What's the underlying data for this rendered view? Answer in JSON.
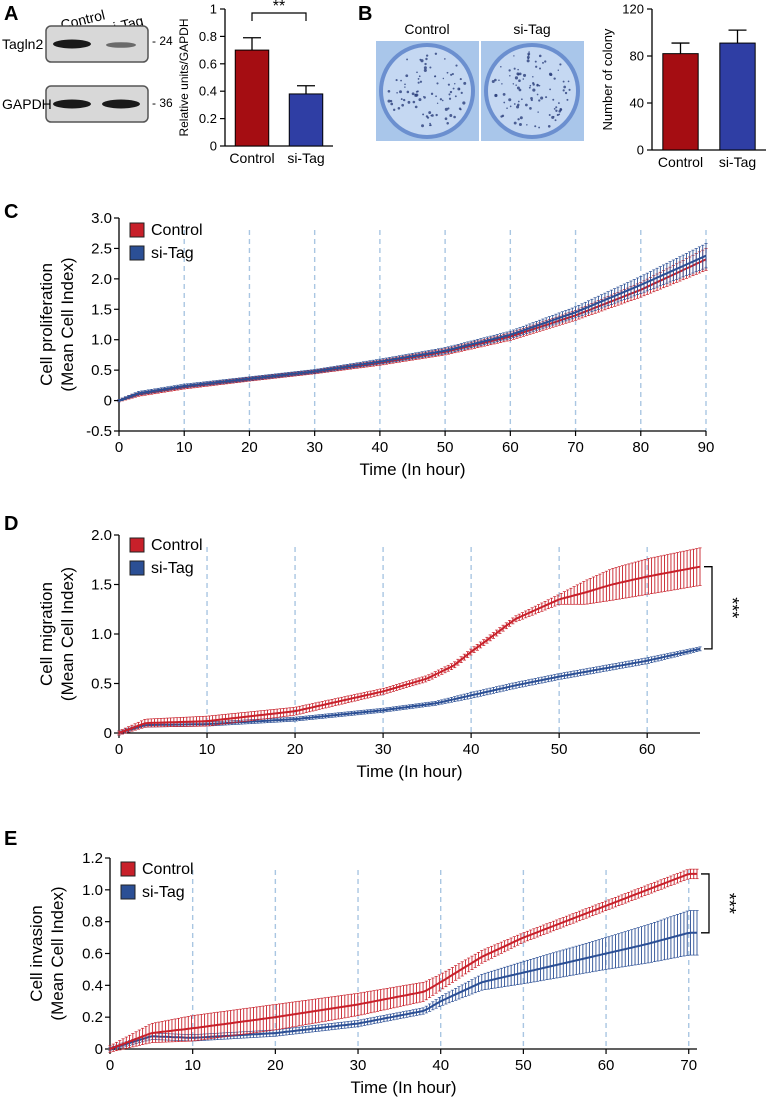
{
  "colors": {
    "control": "#a50d12",
    "sitag": "#2f3ea4",
    "control_line": "#c8202a",
    "sitag_line": "#2b4f95",
    "grid": "#8db3d9"
  },
  "panels": {
    "a": "A",
    "b": "B",
    "c": "C",
    "d": "D",
    "e": "E"
  },
  "blot": {
    "header_control": "Control",
    "header_sitag": "si-Tag",
    "row1_label": "Tagln2",
    "row2_label": "GAPDH",
    "marker1": "- 24",
    "marker2": "- 36"
  },
  "plates": {
    "label_control": "Control",
    "label_sitag": "si-Tag"
  },
  "chart_data": [
    {
      "id": "a",
      "type": "bar",
      "ylabel": "Relative units/GAPDH",
      "categories": [
        "Control",
        "si-Tag"
      ],
      "values": [
        0.7,
        0.38
      ],
      "errors": [
        0.09,
        0.06
      ],
      "ylim": [
        0,
        1.0
      ],
      "yticks": [
        "0",
        "0.2",
        "0.4",
        "0.6",
        "0.8",
        "1"
      ],
      "significance": "**"
    },
    {
      "id": "b",
      "type": "bar",
      "ylabel": "Number of colony",
      "categories": [
        "Control",
        "si-Tag"
      ],
      "values": [
        82,
        91
      ],
      "errors": [
        9,
        11
      ],
      "ylim": [
        0,
        120
      ],
      "yticks": [
        "0",
        "40",
        "80",
        "120"
      ]
    },
    {
      "id": "c",
      "type": "line",
      "ylabel_line1": "Cell proliferation",
      "ylabel_line2": "(Mean Cell Index)",
      "xlabel": "Time (In hour)",
      "xlim": [
        0,
        90
      ],
      "ylim": [
        -0.5,
        3.0
      ],
      "xticks": [
        "0",
        "10",
        "20",
        "30",
        "40",
        "50",
        "60",
        "70",
        "80",
        "90"
      ],
      "yticks": [
        "-0.5",
        "0",
        "0.5",
        "1.0",
        "1.5",
        "2.0",
        "2.5",
        "3.0"
      ],
      "legend": [
        "Control",
        "si-Tag"
      ],
      "series": [
        {
          "name": "Control",
          "x": [
            0,
            3,
            10,
            20,
            30,
            40,
            50,
            60,
            70,
            80,
            90
          ],
          "y": [
            0,
            0.1,
            0.22,
            0.35,
            0.47,
            0.62,
            0.8,
            1.05,
            1.4,
            1.82,
            2.32
          ],
          "err": [
            0.02,
            0.03,
            0.03,
            0.03,
            0.03,
            0.04,
            0.05,
            0.06,
            0.08,
            0.12,
            0.18
          ]
        },
        {
          "name": "si-Tag",
          "x": [
            0,
            3,
            10,
            20,
            30,
            40,
            50,
            60,
            70,
            80,
            90
          ],
          "y": [
            0,
            0.12,
            0.24,
            0.36,
            0.48,
            0.64,
            0.82,
            1.08,
            1.45,
            1.9,
            2.38
          ],
          "err": [
            0.02,
            0.03,
            0.03,
            0.03,
            0.03,
            0.04,
            0.05,
            0.06,
            0.09,
            0.14,
            0.2
          ]
        }
      ]
    },
    {
      "id": "d",
      "type": "line",
      "ylabel_line1": "Cell migration",
      "ylabel_line2": "(Mean Cell Index)",
      "xlabel": "Time (In hour)",
      "xlim": [
        0,
        66
      ],
      "ylim": [
        0,
        2.0
      ],
      "xticks": [
        "0",
        "10",
        "20",
        "30",
        "40",
        "50",
        "60"
      ],
      "yticks": [
        "0",
        "0.5",
        "1.0",
        "1.5",
        "2.0"
      ],
      "legend": [
        "Control",
        "si-Tag"
      ],
      "significance": "***",
      "series": [
        {
          "name": "Control",
          "x": [
            0,
            3,
            10,
            20,
            30,
            35,
            38,
            40,
            42,
            45,
            50,
            53,
            56,
            60,
            66
          ],
          "y": [
            0,
            0.1,
            0.12,
            0.22,
            0.42,
            0.55,
            0.68,
            0.82,
            0.95,
            1.15,
            1.35,
            1.42,
            1.5,
            1.58,
            1.68
          ],
          "err": [
            0.02,
            0.04,
            0.05,
            0.04,
            0.03,
            0.03,
            0.03,
            0.03,
            0.03,
            0.03,
            0.05,
            0.12,
            0.16,
            0.18,
            0.19
          ]
        },
        {
          "name": "si-Tag",
          "x": [
            0,
            3,
            10,
            20,
            30,
            36,
            40,
            45,
            50,
            55,
            60,
            66
          ],
          "y": [
            0,
            0.08,
            0.09,
            0.14,
            0.23,
            0.3,
            0.38,
            0.48,
            0.57,
            0.65,
            0.73,
            0.85
          ],
          "err": [
            0.02,
            0.02,
            0.02,
            0.02,
            0.02,
            0.02,
            0.03,
            0.03,
            0.03,
            0.03,
            0.03,
            0.02
          ]
        }
      ]
    },
    {
      "id": "e",
      "type": "line",
      "ylabel_line1": "Cell invasion",
      "ylabel_line2": "(Mean Cell Index)",
      "xlabel": "Time (In hour)",
      "xlim": [
        0,
        71
      ],
      "ylim": [
        0,
        1.2
      ],
      "xticks": [
        "0",
        "10",
        "20",
        "30",
        "40",
        "50",
        "60",
        "70"
      ],
      "yticks": [
        "0",
        "0.2",
        "0.4",
        "0.6",
        "0.8",
        "1.0",
        "1.2"
      ],
      "legend": [
        "Control",
        "si-Tag"
      ],
      "significance": "***",
      "series": [
        {
          "name": "Control",
          "x": [
            0,
            5,
            10,
            20,
            30,
            38,
            40,
            45,
            50,
            60,
            65,
            70
          ],
          "y": [
            0,
            0.1,
            0.13,
            0.2,
            0.28,
            0.36,
            0.42,
            0.58,
            0.7,
            0.9,
            1.0,
            1.1
          ],
          "err": [
            0.02,
            0.06,
            0.08,
            0.08,
            0.07,
            0.06,
            0.05,
            0.04,
            0.03,
            0.03,
            0.03,
            0.03
          ]
        },
        {
          "name": "si-Tag",
          "x": [
            0,
            5,
            10,
            20,
            30,
            38,
            40,
            45,
            50,
            60,
            65,
            70
          ],
          "y": [
            0,
            0.08,
            0.07,
            0.1,
            0.16,
            0.24,
            0.3,
            0.42,
            0.48,
            0.6,
            0.66,
            0.73
          ],
          "err": [
            0.01,
            0.02,
            0.02,
            0.02,
            0.02,
            0.02,
            0.03,
            0.05,
            0.07,
            0.1,
            0.12,
            0.14
          ]
        }
      ]
    }
  ]
}
